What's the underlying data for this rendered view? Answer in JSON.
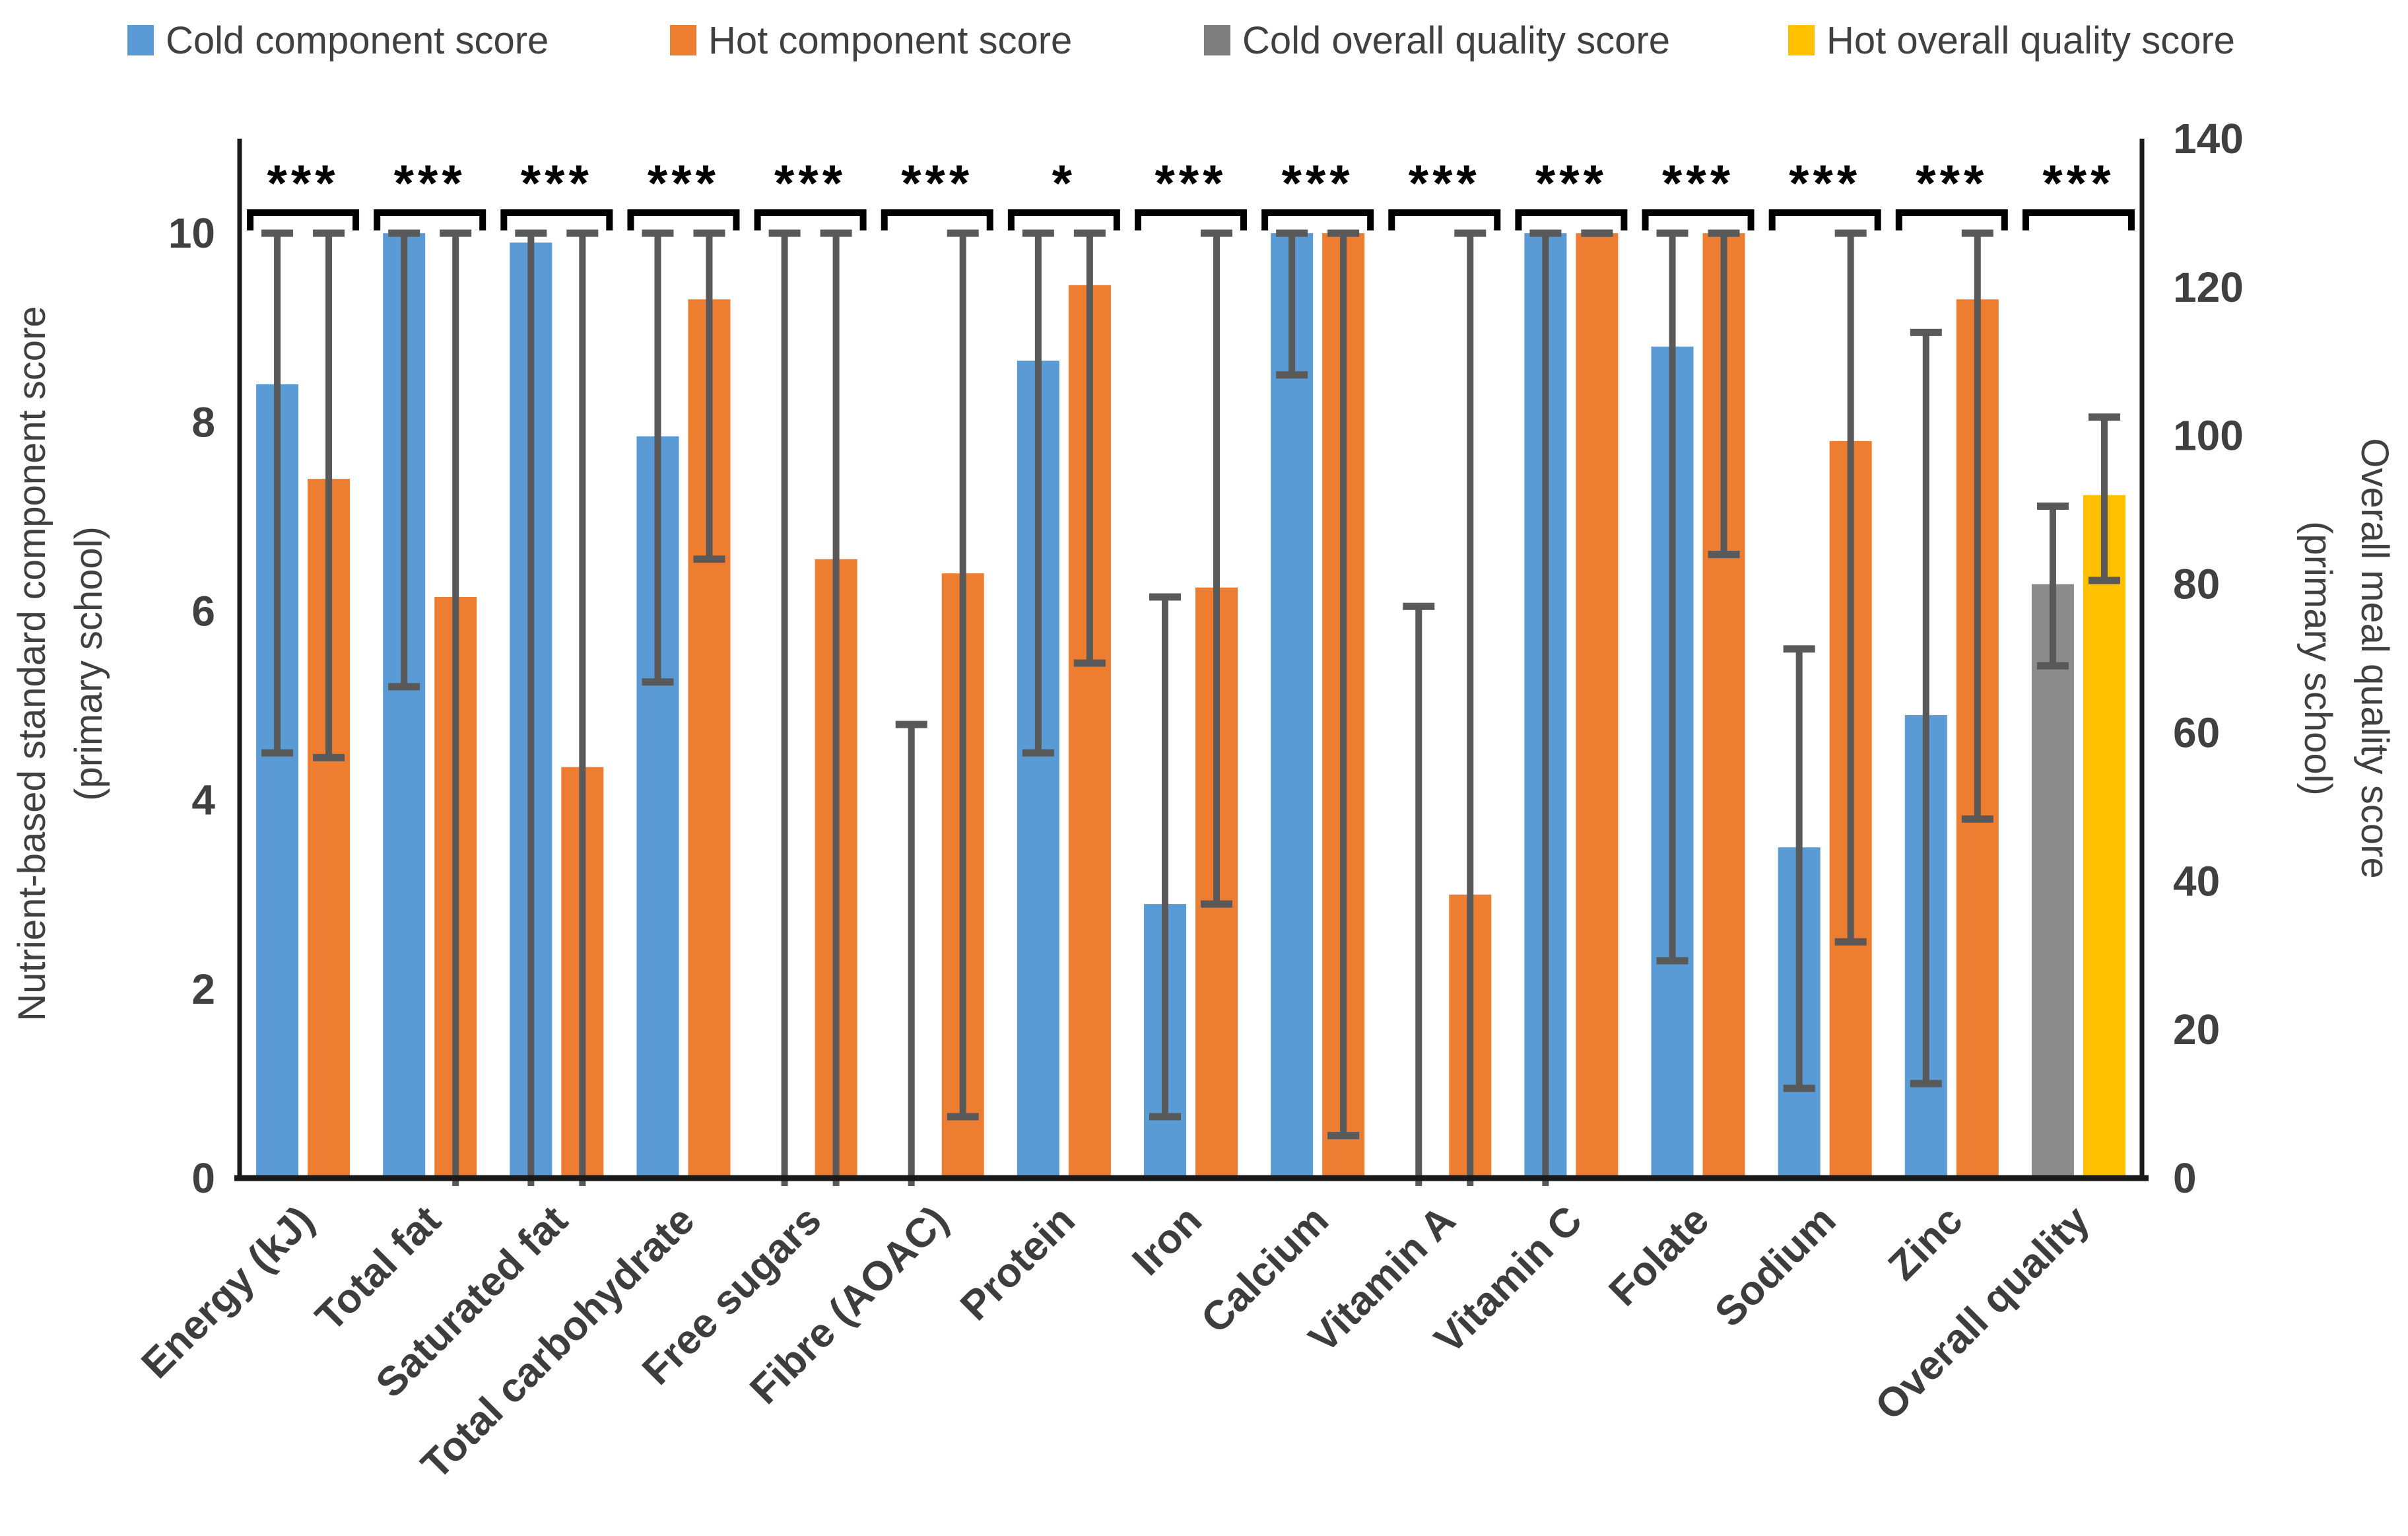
{
  "legend": {
    "items": [
      {
        "label": "Cold component score",
        "color": "#5B9BD5"
      },
      {
        "label": "Hot component score",
        "color": "#ED7D31"
      },
      {
        "label": "Cold overall quality score",
        "color": "#7F7F7F"
      },
      {
        "label": "Hot overall quality score",
        "color": "#FFC000"
      }
    ]
  },
  "axes": {
    "left": {
      "title_line1": "Nutrient-based standard component score",
      "title_line2": "(primary school)",
      "tick_labels": [
        "0",
        "2",
        "4",
        "6",
        "8",
        "10"
      ],
      "tick_values": [
        0,
        2,
        4,
        6,
        8,
        10
      ],
      "range": [
        0,
        11
      ]
    },
    "right": {
      "title_line1": "Overall meal quality score",
      "title_line2": "(primary school)",
      "tick_labels": [
        "0",
        "20",
        "40",
        "60",
        "80",
        "100",
        "120",
        "140"
      ],
      "tick_values": [
        0,
        20,
        40,
        60,
        80,
        100,
        120,
        140
      ],
      "range": [
        0,
        140
      ]
    }
  },
  "chart_data": {
    "type": "bar",
    "title": "",
    "xlabel": "",
    "ylabel_left": "Nutrient-based standard component score (primary school)",
    "ylabel_right": "Overall meal quality score (primary school)",
    "grid": false,
    "legend_position": "top",
    "categories": [
      "Energy (kJ)",
      "Total fat",
      "Saturated fat",
      "Total carbohydrate",
      "Free sugars",
      "Fibre (AOAC)",
      "Protein",
      "Iron",
      "Calcium",
      "Vitamin A",
      "Vitamin C",
      "Folate",
      "Sodium",
      "Zinc",
      "Overall quality"
    ],
    "category_value_axis": [
      "left",
      "left",
      "left",
      "left",
      "left",
      "left",
      "left",
      "left",
      "left",
      "left",
      "left",
      "left",
      "left",
      "left",
      "right"
    ],
    "significance": [
      "***",
      "***",
      "***",
      "***",
      "***",
      "***",
      "*",
      "***",
      "***",
      "***",
      "***",
      "***",
      "***",
      "***",
      "***"
    ],
    "series": [
      {
        "name": "Cold component score",
        "color": "#5B9BD5",
        "last_category_color": "#8C8C8C",
        "last_category_name": "Cold overall quality score",
        "values": [
          8.4,
          10,
          9.9,
          7.85,
          0,
          0,
          8.65,
          2.9,
          10,
          0,
          10,
          8.8,
          3.5,
          4.9,
          80
        ],
        "error_low": [
          4.5,
          5.2,
          0,
          5.25,
          0,
          0,
          4.5,
          0.65,
          8.5,
          0,
          0,
          2.3,
          0.95,
          1.0,
          69
        ],
        "error_high": [
          10,
          10,
          10,
          10,
          10,
          4.8,
          10,
          6.15,
          10,
          6.05,
          10,
          10,
          5.6,
          8.95,
          90.5
        ]
      },
      {
        "name": "Hot component score",
        "color": "#ED7D31",
        "last_category_color": "#FFC000",
        "last_category_name": "Hot overall quality score",
        "values": [
          7.4,
          6.15,
          4.35,
          9.3,
          6.55,
          6.4,
          9.45,
          6.25,
          10,
          3.0,
          10,
          10,
          7.8,
          9.3,
          92
        ],
        "error_low": [
          4.45,
          0,
          0,
          6.55,
          0,
          0.65,
          5.45,
          2.9,
          0.45,
          0,
          10,
          6.6,
          2.5,
          3.8,
          80.5
        ],
        "error_high": [
          10,
          10,
          10,
          10,
          10,
          10,
          10,
          10,
          10,
          10,
          10,
          10,
          10,
          10,
          102.5
        ]
      }
    ],
    "error_bar_color": "#595959",
    "axis_line_color": "#1a1a1a",
    "tick_label_color": "#404040",
    "category_label_color": "#3d3d3d",
    "significance_color": "#000000"
  }
}
